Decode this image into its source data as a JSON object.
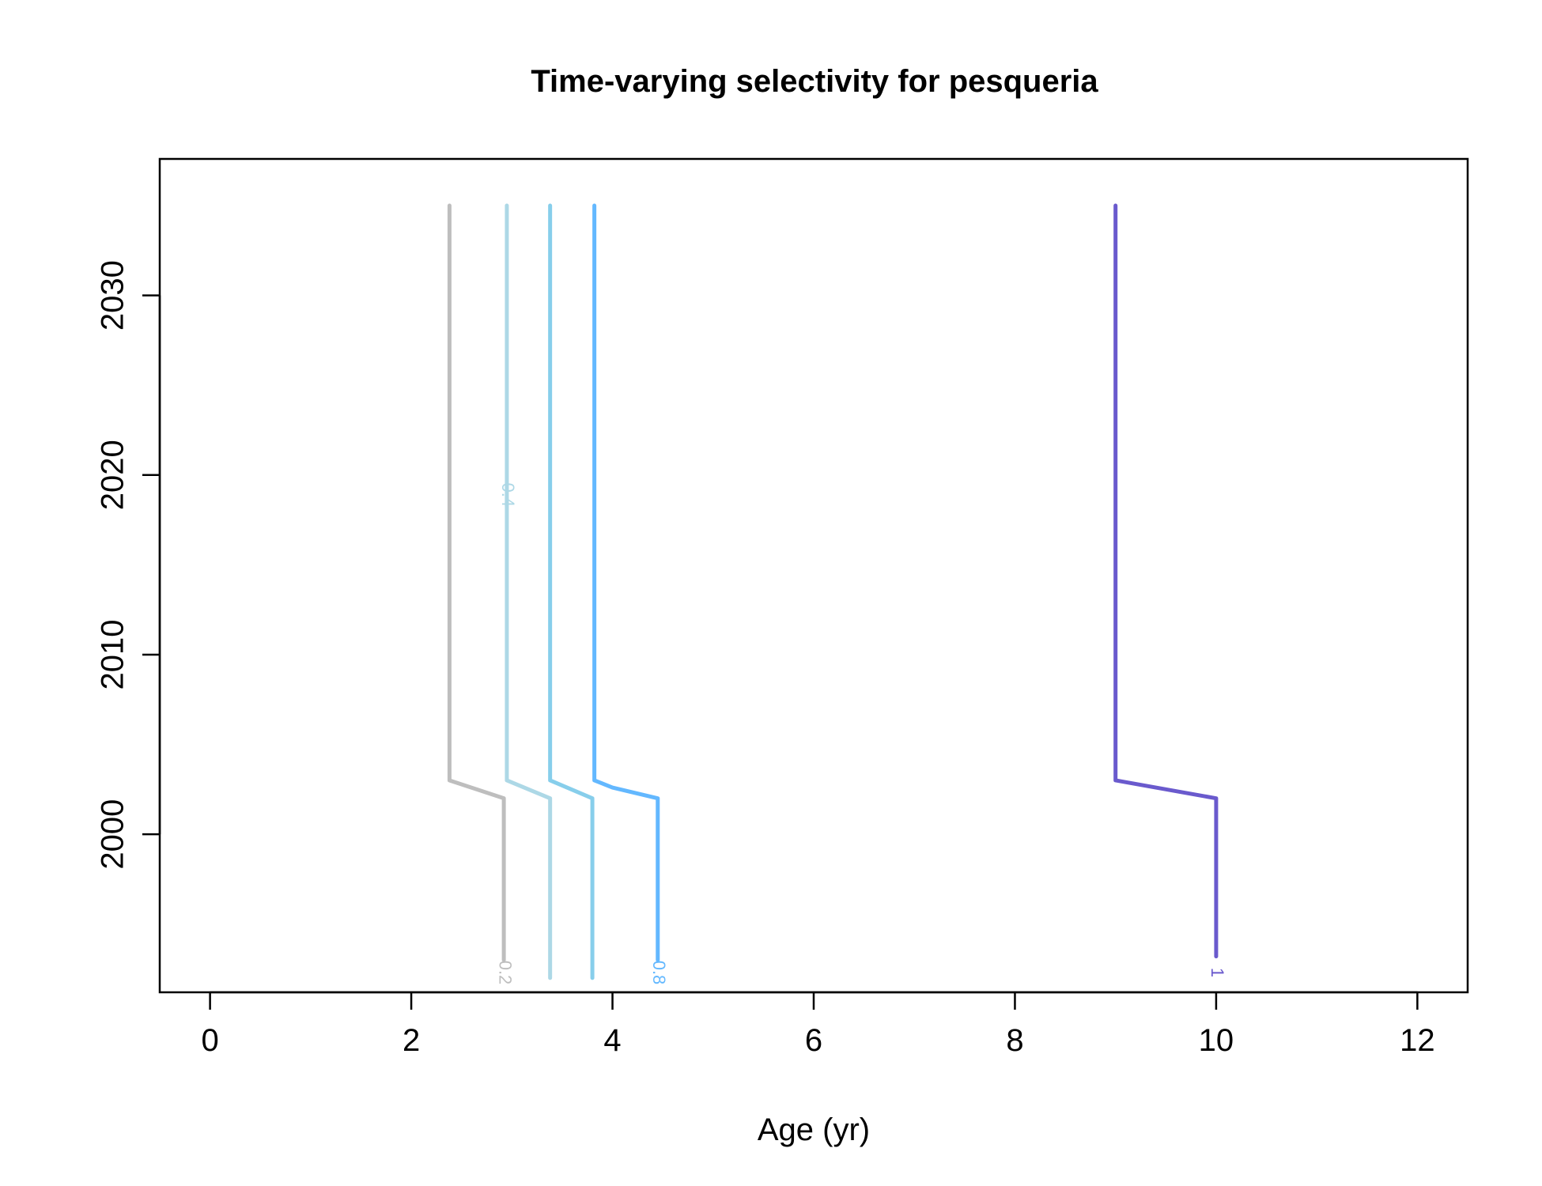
{
  "chart_data": {
    "type": "line",
    "title": "Time-varying selectivity for pesqueria",
    "xlabel": "Age (yr)",
    "ylabel": "",
    "xlim": [
      -0.5,
      12.5
    ],
    "ylim": [
      1991.2,
      2037.6
    ],
    "x_ticks": [
      0,
      2,
      4,
      6,
      8,
      10,
      12
    ],
    "y_ticks": [
      2000,
      2010,
      2020,
      2030
    ],
    "grid": false,
    "legend": "none",
    "series": [
      {
        "name": "0.2",
        "color": "#bebebe",
        "points": [
          [
            2.38,
            2035
          ],
          [
            2.38,
            2003
          ],
          [
            2.92,
            2002
          ],
          [
            2.92,
            1993
          ]
        ],
        "label_at": [
          2.92,
          1992.3
        ]
      },
      {
        "name": "0.4",
        "color": "#add8e6",
        "points": [
          [
            2.95,
            2035
          ],
          [
            2.95,
            2003
          ],
          [
            3.38,
            2002
          ],
          [
            3.38,
            1992
          ]
        ],
        "label_at": [
          2.95,
          2018.9
        ]
      },
      {
        "name": "",
        "color": "#87ceeb",
        "points": [
          [
            3.38,
            2035
          ],
          [
            3.38,
            2003
          ],
          [
            3.8,
            2002
          ],
          [
            3.8,
            1992
          ]
        ]
      },
      {
        "name": "0.8",
        "color": "#63b8ff",
        "points": [
          [
            3.82,
            2035
          ],
          [
            3.82,
            2003
          ],
          [
            4.0,
            2002.6
          ],
          [
            4.45,
            2002
          ],
          [
            4.45,
            1993
          ]
        ],
        "label_at": [
          4.45,
          1992.3
        ]
      },
      {
        "name": "1",
        "color": "#6a5acd",
        "points": [
          [
            9.0,
            2035
          ],
          [
            9.0,
            2003
          ],
          [
            10.0,
            2002
          ],
          [
            10.0,
            1993.2
          ]
        ],
        "label_at": [
          10.0,
          1992.3
        ]
      }
    ]
  }
}
